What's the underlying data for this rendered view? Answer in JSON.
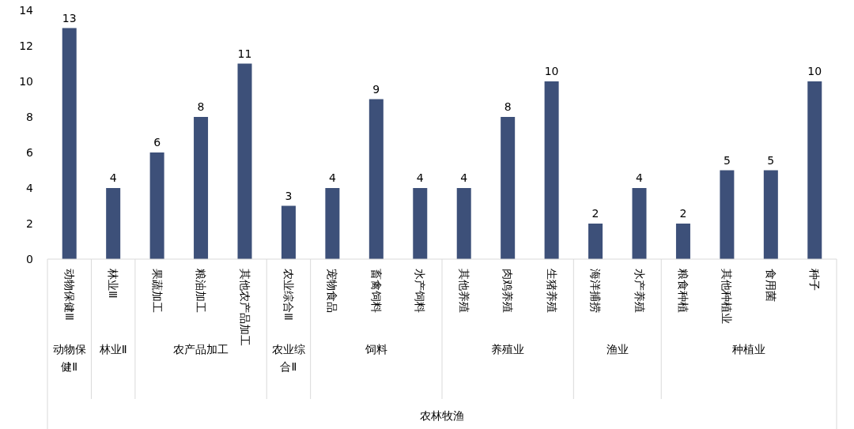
{
  "chart_data": {
    "type": "bar",
    "categories": [
      "动物保健Ⅲ",
      "林业Ⅲ",
      "果蔬加工",
      "粮油加工",
      "其他农产品加工",
      "农业综合Ⅲ",
      "宠物食品",
      "畜禽饲料",
      "水产饲料",
      "其他养殖",
      "肉鸡养殖",
      "生猪养殖",
      "海洋捕捞",
      "水产养殖",
      "粮食种植",
      "其他种植业",
      "食用菌",
      "种子"
    ],
    "values": [
      13,
      4,
      6,
      8,
      11,
      3,
      4,
      9,
      4,
      4,
      8,
      10,
      2,
      4,
      2,
      5,
      5,
      10
    ],
    "color": "#3d5079",
    "ylim": [
      0,
      14
    ],
    "yticks": [
      0,
      2,
      4,
      6,
      8,
      10,
      12,
      14
    ],
    "data_labels": true,
    "grid": false,
    "annotations": [
      "动物保健Ⅱ",
      "林业Ⅱ",
      "农产品加工",
      "农业综合Ⅱ",
      "饲料",
      "养殖业",
      "渔业",
      "种植业",
      "农林牧渔"
    ]
  }
}
